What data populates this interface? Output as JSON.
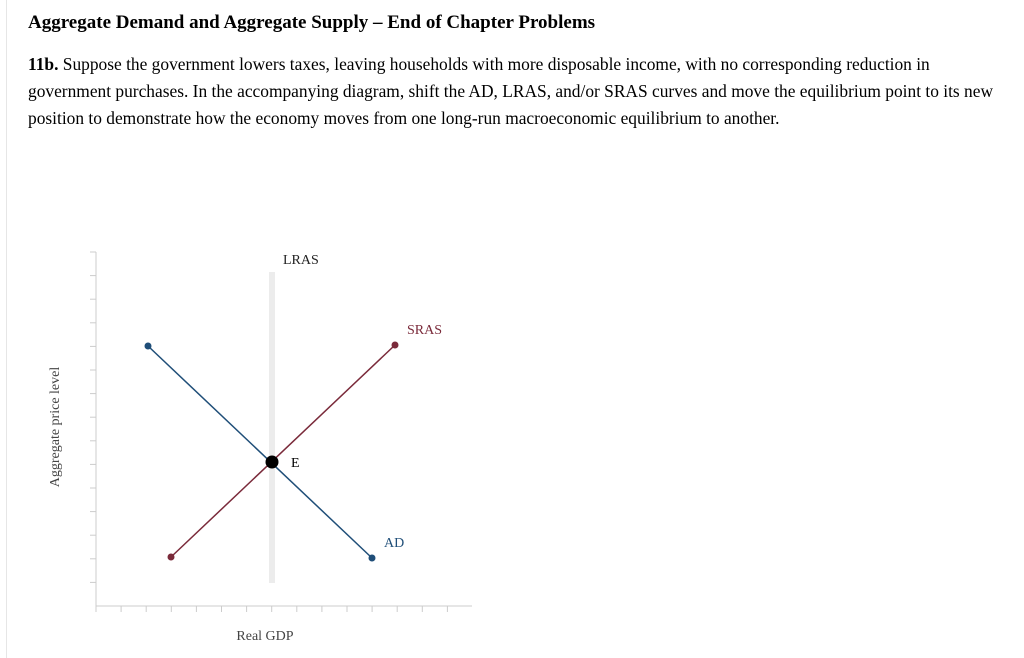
{
  "header": {
    "title": "Aggregate Demand and Aggregate Supply – End of Chapter Problems",
    "question_number": "11b.",
    "question_text": " Suppose the government lowers taxes, leaving households with more disposable income, with no corresponding reduction in government purchases. In the accompanying diagram, shift the AD, LRAS, and/or SRAS curves and move the equilibrium point to its new position to demonstrate how the economy moves from one long-run macroeconomic equilibrium to another."
  },
  "diagram": {
    "y_axis_label": "Aggregate price level",
    "x_axis_label": "Real GDP",
    "curves": {
      "lras": {
        "label": "LRAS"
      },
      "sras": {
        "label": "SRAS",
        "color": "#7a2a3a"
      },
      "ad": {
        "label": "AD",
        "color": "#1f4e78"
      }
    },
    "equilibrium": {
      "label": "E",
      "color": "#000000"
    },
    "axis_color": "#cccccc"
  }
}
